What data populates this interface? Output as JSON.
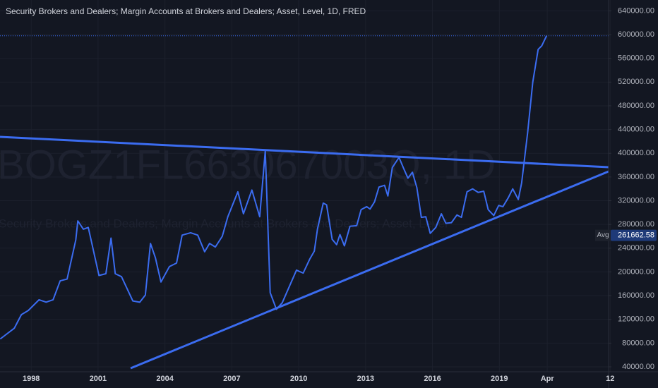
{
  "chart_data": {
    "type": "line",
    "title": "Security Brokers and Dealers; Margin Accounts at Brokers and Dealers; Asset, Level, 1D, FRED",
    "watermark": "BOGZ1FL663067003Q, 1D",
    "watermark_subtitle": "Security Brokers and Dealers; Margin Accounts at Brokers and Dealers; Asset, Level",
    "color": "#3b6cf0",
    "x": [
      1996.61,
      1997.24,
      1997.56,
      1997.87,
      1998.35,
      1998.67,
      1998.98,
      1999.3,
      1999.61,
      2000.0,
      2000.09,
      2000.34,
      2000.56,
      2001.04,
      2001.35,
      2001.58,
      2001.77,
      2002.05,
      2002.56,
      2002.87,
      2003.12,
      2003.35,
      2003.57,
      2003.82,
      2004.2,
      2004.52,
      2004.77,
      2005.15,
      2005.47,
      2005.78,
      2006.0,
      2006.26,
      2006.57,
      2006.82,
      2007.27,
      2007.52,
      2007.9,
      2008.25,
      2008.5,
      2008.72,
      2009.0,
      2009.26,
      2009.9,
      2010.2,
      2010.5,
      2010.7,
      2010.84,
      2011.1,
      2011.25,
      2011.5,
      2011.7,
      2011.85,
      2012.05,
      2012.3,
      2012.6,
      2012.8,
      2013.05,
      2013.2,
      2013.4,
      2013.6,
      2013.85,
      2014.0,
      2014.2,
      2014.5,
      2014.7,
      2014.9,
      2015.1,
      2015.3,
      2015.5,
      2015.7,
      2015.9,
      2016.15,
      2016.4,
      2016.6,
      2016.85,
      2017.1,
      2017.3,
      2017.55,
      2017.8,
      2018.05,
      2018.3,
      2018.5,
      2018.75,
      2018.97,
      2019.16,
      2019.4,
      2019.6,
      2019.85,
      2020.0,
      2020.27,
      2020.5,
      2020.74,
      2020.9,
      2021.12
    ],
    "values": [
      87000,
      105000,
      128000,
      135000,
      153000,
      149000,
      153000,
      185000,
      188000,
      254000,
      286000,
      272000,
      275000,
      194000,
      197000,
      257000,
      197000,
      192000,
      151000,
      149000,
      161000,
      248000,
      224000,
      183000,
      209000,
      215000,
      262000,
      266000,
      262000,
      234000,
      248000,
      242000,
      260000,
      293000,
      335000,
      298000,
      338000,
      293000,
      404000,
      165000,
      137000,
      148000,
      203000,
      198000,
      222000,
      235000,
      272000,
      316000,
      313000,
      255000,
      246000,
      263000,
      244000,
      277000,
      278000,
      305000,
      310000,
      306000,
      318000,
      343000,
      346000,
      328000,
      376000,
      393000,
      375000,
      358000,
      368000,
      342000,
      292000,
      293000,
      265000,
      275000,
      298000,
      282000,
      283000,
      296000,
      292000,
      335000,
      340000,
      334000,
      336000,
      305000,
      295000,
      312000,
      310000,
      325000,
      340000,
      322000,
      350000,
      435000,
      520000,
      575000,
      581000,
      598000
    ],
    "xlim": [
      1996.6,
      2023.9
    ],
    "ylim": [
      31700,
      658300
    ],
    "xticks": [
      1998,
      2001,
      2004,
      2007,
      2010,
      2013,
      2016,
      2019,
      {
        "value": 2021.15,
        "label": "Apr"
      },
      {
        "value": 2023.97,
        "label": "12"
      }
    ],
    "yticks": [
      {
        "value": 40000,
        "label": "40000.00"
      },
      {
        "value": 80000,
        "label": "80000.00"
      },
      {
        "value": 120000,
        "label": "120000.00"
      },
      {
        "value": 160000,
        "label": "160000.00"
      },
      {
        "value": 200000,
        "label": "200000.00"
      },
      {
        "value": 240000,
        "label": "240000.00"
      },
      {
        "value": 280000,
        "label": "280000.00"
      },
      {
        "value": 320000,
        "label": "320000.00"
      },
      {
        "value": 360000,
        "label": "360000.00"
      },
      {
        "value": 400000,
        "label": "400000.00"
      },
      {
        "value": 440000,
        "label": "440000.00"
      },
      {
        "value": 480000,
        "label": "480000.00"
      },
      {
        "value": 520000,
        "label": "520000.00"
      },
      {
        "value": 560000,
        "label": "560000.00"
      },
      {
        "value": 600000,
        "label": "600000.00"
      },
      {
        "value": 640000,
        "label": "640000.00"
      }
    ],
    "avg": {
      "label": "Avg",
      "value": 261662.58
    },
    "grid": true
  }
}
